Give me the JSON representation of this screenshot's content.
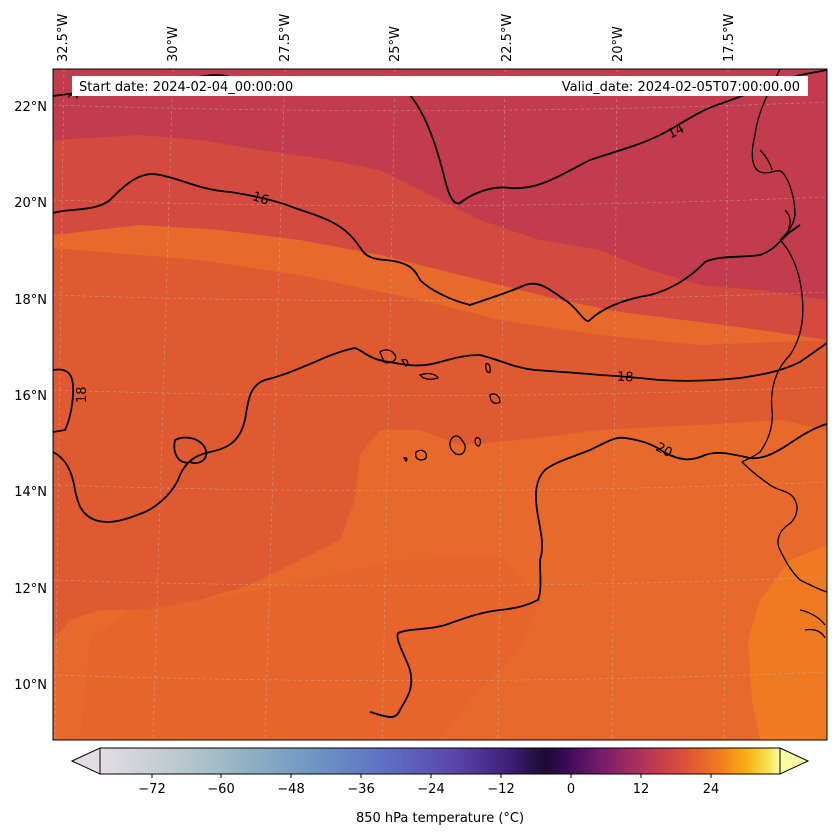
{
  "header": {
    "start_date": "Start date: 2024-02-04_00:00:00",
    "valid_date": "Valid_date: 2024-02-05T07:00:00.00"
  },
  "longitude_labels": [
    "32.5°W",
    "30°W",
    "27.5°W",
    "25°W",
    "22.5°W",
    "20°W",
    "17.5°W"
  ],
  "latitude_labels": [
    "22°N",
    "20°N",
    "18°N",
    "16°N",
    "14°N",
    "12°N",
    "10°N"
  ],
  "contour_labels": [
    "14",
    "16",
    "18",
    "18",
    "20",
    "1"
  ],
  "colorbar": {
    "label": "850 hPa temperature ($^\\circ$C)",
    "label_display": "850 hPa temperature (°C)",
    "ticks": [
      "−72",
      "−60",
      "−48",
      "−36",
      "−24",
      "−12",
      "0",
      "12",
      "24"
    ],
    "colormap": "inferno-like (grey-blue-purple-black-red-orange-yellow)",
    "extend": "both"
  },
  "colors": {
    "band_14": "#c23c4e",
    "band_16": "#d44a3e",
    "band_18": "#e05a31",
    "band_20": "#e86a2c",
    "band_22": "#ef7a22"
  }
}
